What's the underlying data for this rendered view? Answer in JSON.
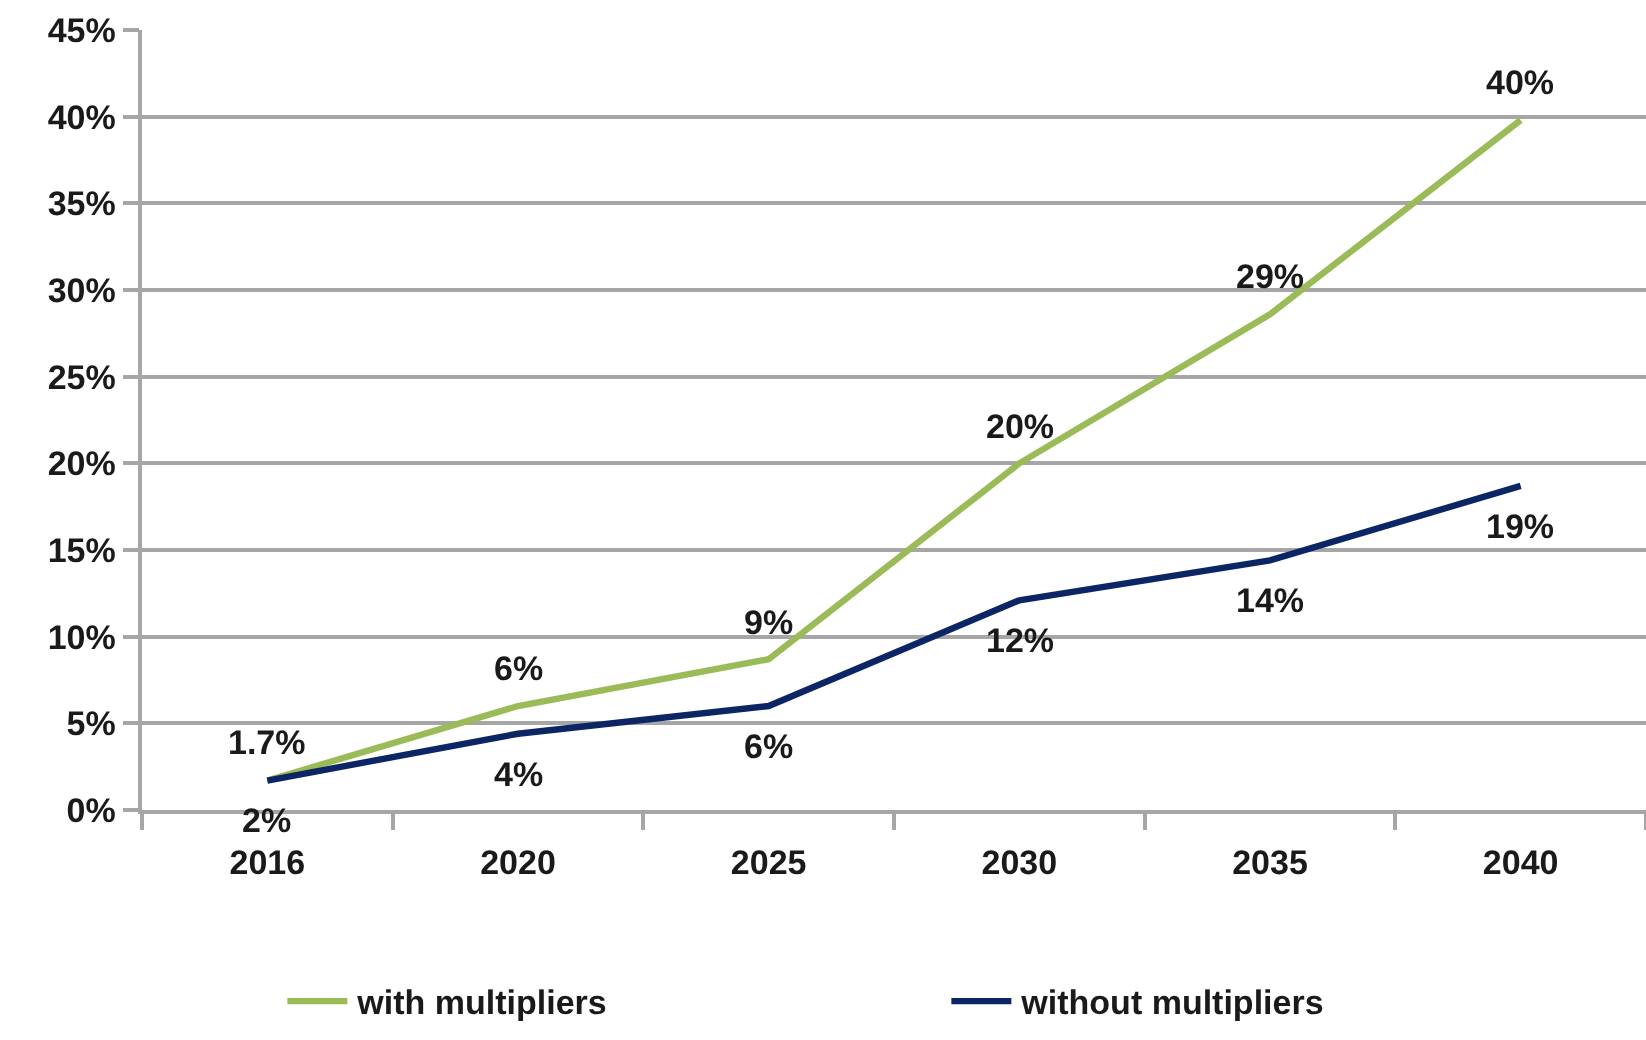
{
  "chart_data": {
    "type": "line",
    "categories": [
      "2016",
      "2020",
      "2025",
      "2030",
      "2035",
      "2040"
    ],
    "ylim": [
      0,
      45
    ],
    "yticks": [
      {
        "value": 0,
        "label": "0%"
      },
      {
        "value": 5,
        "label": "5%"
      },
      {
        "value": 10,
        "label": "10%"
      },
      {
        "value": 15,
        "label": "15%"
      },
      {
        "value": 20,
        "label": "20%"
      },
      {
        "value": 25,
        "label": "25%"
      },
      {
        "value": 30,
        "label": "30%"
      },
      {
        "value": 35,
        "label": "35%"
      },
      {
        "value": 40,
        "label": "40%"
      },
      {
        "value": 45,
        "label": "45%"
      }
    ],
    "grid": "y",
    "legend": "bottom",
    "marker": "none",
    "line_style": "solid",
    "series": [
      {
        "name": "with multipliers",
        "color": "#9bbb59",
        "values": [
          1.7,
          6.0,
          8.7,
          20.0,
          28.6,
          39.8
        ],
        "value_labels": [
          "1.7%",
          "6%",
          "9%",
          "20%",
          "29%",
          "40%"
        ]
      },
      {
        "name": "without multipliers",
        "color": "#0c2565",
        "values": [
          1.7,
          4.4,
          6.0,
          12.1,
          14.4,
          18.7
        ],
        "value_labels": [
          "2%",
          "4%",
          "6%",
          "12%",
          "14%",
          "19%"
        ]
      }
    ]
  }
}
